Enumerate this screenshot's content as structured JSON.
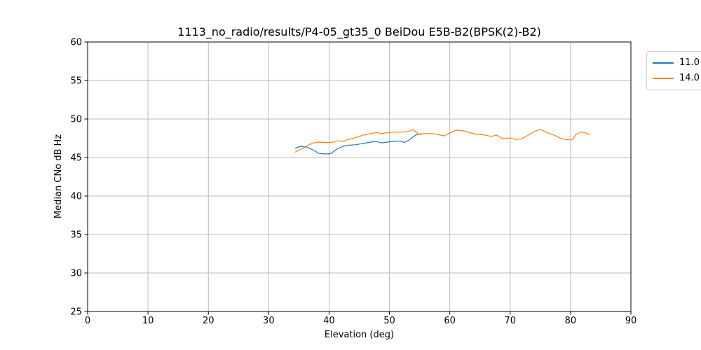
{
  "figure": {
    "background": "#ffffff",
    "grid_color": "#b9b9b9",
    "spine_color": "#000000"
  },
  "chart_data": {
    "type": "line",
    "title": "1113_no_radio/results/P4-05_gt35_0 BeiDou E5B-B2(BPSK(2)-B2)",
    "xlabel": "Elevation (deg)",
    "ylabel": "Median CNo dB Hz",
    "xlim": [
      0,
      90
    ],
    "ylim": [
      25,
      60
    ],
    "xticks": [
      0,
      10,
      20,
      30,
      40,
      50,
      60,
      70,
      80,
      90
    ],
    "yticks": [
      25,
      30,
      35,
      40,
      45,
      50,
      55,
      60
    ],
    "grid": true,
    "legend_position": "upper-right-outside",
    "series": [
      {
        "name": "11.0",
        "color": "#1f77b4",
        "x": [
          34.4,
          35.3,
          36.3,
          37.3,
          38.3,
          39.3,
          40.3,
          41.3,
          42.3,
          43.3,
          44.4,
          45.5,
          46.6,
          47.6,
          48.7,
          49.7,
          50.7,
          51.7,
          52.5,
          53.4,
          54.3,
          55.3
        ],
        "y": [
          46.2,
          46.45,
          46.35,
          46.0,
          45.55,
          45.45,
          45.5,
          46.1,
          46.45,
          46.6,
          46.65,
          46.8,
          46.95,
          47.1,
          46.9,
          47.0,
          47.1,
          47.15,
          46.95,
          47.35,
          47.9,
          48.1
        ]
      },
      {
        "name": "14.0",
        "color": "#ff7f0e",
        "x": [
          34.4,
          35.4,
          36.4,
          37.4,
          38.4,
          39.4,
          40.4,
          41.3,
          42.3,
          43.3,
          44.5,
          45.6,
          46.8,
          47.8,
          48.7,
          49.9,
          51.0,
          52.0,
          53.0,
          53.9,
          54.9,
          56.0,
          57.0,
          58.0,
          59.0,
          60.2,
          61.0,
          62.0,
          63.2,
          64.4,
          65.6,
          66.8,
          67.8,
          68.7,
          70.0,
          70.8,
          71.8,
          73.0,
          74.0,
          75.0,
          76.1,
          77.3,
          78.5,
          79.5,
          80.3,
          80.9,
          81.7,
          82.5,
          83.1
        ],
        "y": [
          45.7,
          46.1,
          46.55,
          46.9,
          47.0,
          46.95,
          46.95,
          47.15,
          47.1,
          47.35,
          47.6,
          47.9,
          48.1,
          48.25,
          48.1,
          48.25,
          48.3,
          48.3,
          48.35,
          48.6,
          48.0,
          48.1,
          48.1,
          48.0,
          47.8,
          48.25,
          48.55,
          48.5,
          48.25,
          48.0,
          47.95,
          47.75,
          47.9,
          47.45,
          47.55,
          47.35,
          47.4,
          47.9,
          48.35,
          48.65,
          48.25,
          47.9,
          47.45,
          47.3,
          47.3,
          48.0,
          48.3,
          48.2,
          47.95
        ]
      }
    ]
  }
}
